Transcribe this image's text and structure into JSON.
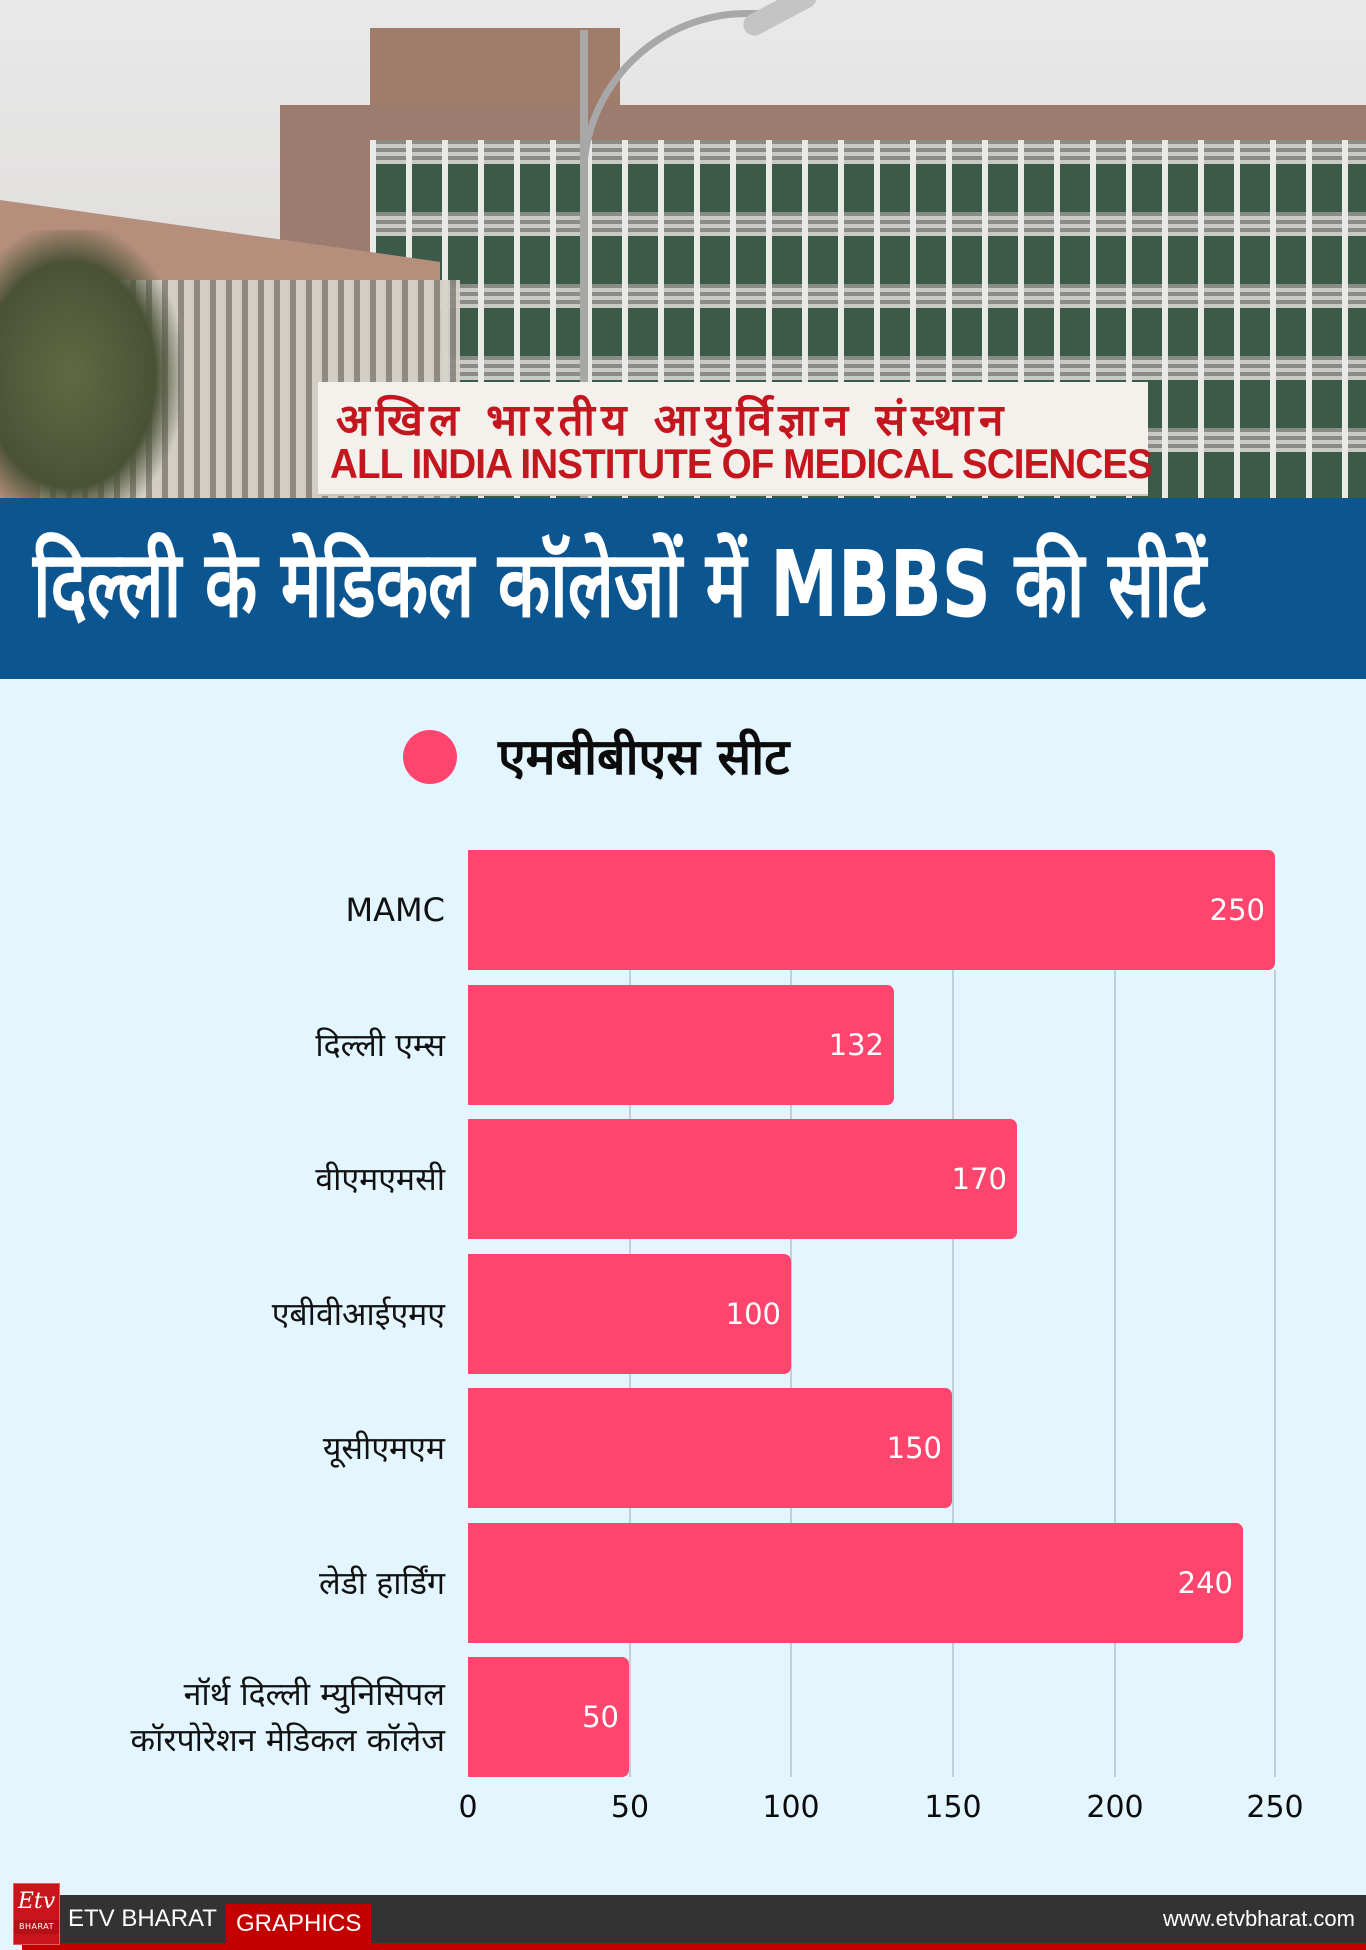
{
  "photo": {
    "sign_hindi": "अखिल भारतीय आयुर्विज्ञान संस्थान",
    "sign_english": "ALL INDIA INSTITUTE OF MEDICAL SCIENCES"
  },
  "header": {
    "title": "दिल्ली के मेडिकल कॉलेजों में MBBS की सीटें"
  },
  "legend": {
    "label": "एमबीबीएस सीट",
    "color": "#ff456e"
  },
  "colors": {
    "background": "#e3f5fe",
    "title_band": "#0b5591",
    "bar": "#ff456e",
    "footer": "#333333",
    "brand_red": "#c30000"
  },
  "chart_data": {
    "type": "bar",
    "orientation": "horizontal",
    "title": "दिल्ली के मेडिकल कॉलेजों में MBBS की सीटें",
    "categories": [
      "MAMC",
      "दिल्ली एम्स",
      "वीएमएमसी",
      "एबीवीआईएमए",
      "यूसीएमएम",
      "लेडी हार्डिंग",
      "नॉर्थ दिल्ली म्युनिसिपल कॉरपोरेशन मेडिकल कॉलेज"
    ],
    "category_lines": [
      [
        "MAMC"
      ],
      [
        "दिल्ली एम्स"
      ],
      [
        "वीएमएमसी"
      ],
      [
        "एबीवीआईएमए"
      ],
      [
        "यूसीएमएम"
      ],
      [
        "लेडी हार्डिंग"
      ],
      [
        "नॉर्थ दिल्ली म्युनिसिपल",
        "कॉरपोरेशन मेडिकल कॉलेज"
      ]
    ],
    "series": [
      {
        "name": "एमबीबीएस सीट",
        "values": [
          250,
          132,
          170,
          100,
          150,
          240,
          50
        ]
      }
    ],
    "values": [
      250,
      132,
      170,
      100,
      150,
      240,
      50
    ],
    "xlabel": "",
    "ylabel": "",
    "xlim": [
      0,
      250
    ],
    "x_ticks": [
      "0",
      "50",
      "100",
      "150",
      "200",
      "250"
    ],
    "grid": true,
    "legend_position": "top",
    "data_labels": true
  },
  "footer": {
    "logo_mark": "Etv",
    "logo_sub": "BHARAT",
    "brand": "ETV BHARAT",
    "tag": "GRAPHICS",
    "url": "www.etvbharat.com"
  }
}
